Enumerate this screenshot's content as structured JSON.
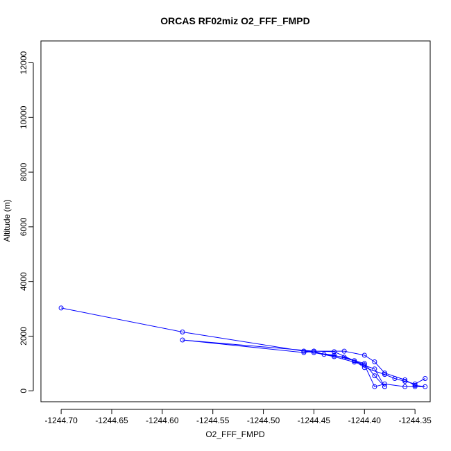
{
  "chart_data": {
    "type": "scatter",
    "title": "ORCAS RF02miz O2_FFF_FMPD",
    "xlabel": "O2_FFF_FMPD",
    "ylabel": "Altitude (m)",
    "xlim": [
      -1244.72,
      -1244.335
    ],
    "ylim": [
      -400,
      12800
    ],
    "x_ticks": [
      -1244.7,
      -1244.65,
      -1244.6,
      -1244.55,
      -1244.5,
      -1244.45,
      -1244.4,
      -1244.35
    ],
    "x_tick_labels": [
      "-1244.70",
      "-1244.65",
      "-1244.60",
      "-1244.55",
      "-1244.50",
      "-1244.45",
      "-1244.40",
      "-1244.35"
    ],
    "y_ticks": [
      0,
      2000,
      4000,
      6000,
      8000,
      10000,
      12000
    ],
    "y_tick_labels": [
      "0",
      "2000",
      "4000",
      "6000",
      "8000",
      "10000",
      "12000"
    ],
    "grid": false,
    "series": [
      {
        "color": "#0000ff",
        "marker": "open-circle",
        "x": [
          -1244.7,
          -1244.58,
          -1244.46,
          -1244.45,
          -1244.42,
          -1244.4,
          -1244.39,
          -1244.38,
          -1244.36,
          -1244.35,
          -1244.34,
          -1244.35,
          -1244.36,
          -1244.38,
          -1244.39,
          -1244.4,
          -1244.42,
          -1244.44,
          -1244.45,
          -1244.46,
          -1244.58,
          -1244.45,
          -1244.43,
          -1244.41,
          -1244.4,
          -1244.39,
          -1244.38,
          -1244.38,
          -1244.39,
          -1244.41,
          -1244.43,
          -1244.45,
          -1244.46,
          -1244.43,
          -1244.41,
          -1244.4,
          -1244.38,
          -1244.37,
          -1244.36,
          -1244.35,
          -1244.34
        ],
        "y": [
          3030,
          2150,
          1450,
          1450,
          1450,
          1300,
          1060,
          650,
          400,
          200,
          150,
          150,
          150,
          250,
          150,
          950,
          1230,
          1330,
          1450,
          1400,
          1860,
          1450,
          1430,
          1100,
          1000,
          550,
          150,
          150,
          800,
          1050,
          1250,
          1400,
          1450,
          1300,
          1100,
          850,
          600,
          450,
          350,
          250,
          450
        ]
      }
    ]
  }
}
